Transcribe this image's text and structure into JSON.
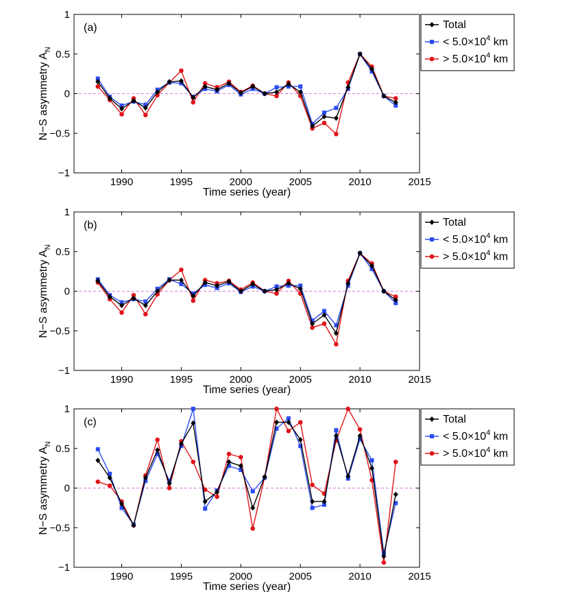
{
  "colors": {
    "total": "#000000",
    "small": "#2b4cf0",
    "large": "#e0141a",
    "zero_line": "#d57ad6",
    "axis": "#000000",
    "background": "#ffffff"
  },
  "chart_data": [
    {
      "type": "line",
      "panel_label": "(a)",
      "xlabel": "Time series (year)",
      "ylabel": "N−S asymmetry A",
      "ylabel_sub": "N",
      "xlim": [
        1986,
        2015
      ],
      "ylim": [
        -1,
        1
      ],
      "x_ticks": [
        1990,
        1995,
        2000,
        2005,
        2010,
        2015
      ],
      "y_ticks": [
        -1,
        -0.5,
        0,
        0.5,
        1
      ],
      "y_tick_labels": [
        "−1",
        "−0.5",
        "0",
        "0.5",
        "1"
      ],
      "zero_line": true,
      "grid": false,
      "legend_position": "outside-right-top",
      "x": [
        1988,
        1989,
        1990,
        1991,
        1992,
        1993,
        1994,
        1995,
        1996,
        1997,
        1998,
        1999,
        2000,
        2001,
        2002,
        2003,
        2004,
        2005,
        2006,
        2007,
        2008,
        2009,
        2010,
        2011,
        2012,
        2013
      ],
      "series": [
        {
          "key": "total",
          "name_prefix": "Total",
          "name_sup": "",
          "name_suffix": "",
          "marker": "diamond",
          "values": [
            0.15,
            -0.06,
            -0.19,
            -0.09,
            -0.18,
            0.02,
            0.15,
            0.16,
            -0.05,
            0.09,
            0.05,
            0.13,
            0.01,
            0.09,
            0.0,
            0.02,
            0.12,
            0.02,
            -0.41,
            -0.29,
            -0.31,
            0.08,
            0.5,
            0.31,
            -0.03,
            -0.11
          ]
        },
        {
          "key": "small",
          "name_prefix": "< 5.0×10",
          "name_sup": "4",
          "name_suffix": " km",
          "marker": "square",
          "values": [
            0.19,
            -0.04,
            -0.15,
            -0.1,
            -0.14,
            0.05,
            0.14,
            0.13,
            -0.04,
            0.06,
            0.03,
            0.11,
            -0.01,
            0.06,
            0.0,
            0.08,
            0.09,
            0.09,
            -0.38,
            -0.24,
            -0.18,
            0.06,
            0.5,
            0.28,
            -0.03,
            -0.15
          ]
        },
        {
          "key": "large",
          "name_prefix": "> 5.0×10",
          "name_sup": "4",
          "name_suffix": " km",
          "marker": "circle",
          "values": [
            0.09,
            -0.08,
            -0.26,
            -0.06,
            -0.27,
            -0.02,
            0.14,
            0.29,
            -0.11,
            0.13,
            0.08,
            0.15,
            0.02,
            0.1,
            0.0,
            -0.03,
            0.14,
            -0.03,
            -0.44,
            -0.37,
            -0.51,
            0.14,
            0.5,
            0.34,
            -0.03,
            -0.06
          ]
        }
      ]
    },
    {
      "type": "line",
      "panel_label": "(b)",
      "xlabel": "Time series (year)",
      "ylabel": "N−S asymmetry A",
      "ylabel_sub": "N",
      "xlim": [
        1986,
        2015
      ],
      "ylim": [
        -1,
        1
      ],
      "x_ticks": [
        1990,
        1995,
        2000,
        2005,
        2010,
        2015
      ],
      "y_ticks": [
        -1,
        -0.5,
        0,
        0.5,
        1
      ],
      "y_tick_labels": [
        "−1",
        "−0.5",
        "0",
        "0.5",
        "1"
      ],
      "zero_line": true,
      "grid": false,
      "legend_position": "outside-right-top",
      "x": [
        1988,
        1989,
        1990,
        1991,
        1992,
        1993,
        1994,
        1995,
        1996,
        1997,
        1998,
        1999,
        2000,
        2001,
        2002,
        2003,
        2004,
        2005,
        2006,
        2007,
        2008,
        2009,
        2010,
        2011,
        2012,
        2013
      ],
      "series": [
        {
          "key": "total",
          "name_prefix": "Total",
          "name_sup": "",
          "name_suffix": "",
          "marker": "diamond",
          "values": [
            0.13,
            -0.07,
            -0.18,
            -0.09,
            -0.18,
            0.0,
            0.14,
            0.14,
            -0.06,
            0.11,
            0.07,
            0.12,
            0.0,
            0.09,
            0.0,
            0.02,
            0.1,
            0.03,
            -0.41,
            -0.3,
            -0.53,
            0.1,
            0.48,
            0.32,
            0.0,
            -0.11
          ]
        },
        {
          "key": "small",
          "name_prefix": "< 5.0×10",
          "name_sup": "4",
          "name_suffix": " km",
          "marker": "square",
          "values": [
            0.15,
            -0.05,
            -0.14,
            -0.1,
            -0.13,
            0.03,
            0.15,
            0.09,
            -0.03,
            0.08,
            0.04,
            0.1,
            -0.01,
            0.06,
            0.0,
            0.06,
            0.07,
            0.07,
            -0.37,
            -0.25,
            -0.43,
            0.07,
            0.48,
            0.28,
            0.0,
            -0.15
          ]
        },
        {
          "key": "large",
          "name_prefix": "> 5.0×10",
          "name_sup": "4",
          "name_suffix": " km",
          "marker": "circle",
          "values": [
            0.11,
            -0.1,
            -0.27,
            -0.05,
            -0.29,
            -0.04,
            0.14,
            0.27,
            -0.12,
            0.14,
            0.1,
            0.13,
            0.02,
            0.11,
            0.0,
            -0.03,
            0.13,
            -0.03,
            -0.46,
            -0.41,
            -0.67,
            0.13,
            0.48,
            0.35,
            0.0,
            -0.07
          ]
        }
      ]
    },
    {
      "type": "line",
      "panel_label": "(c)",
      "xlabel": "Time series (year)",
      "ylabel": "N−S asymmetry A",
      "ylabel_sub": "N",
      "xlim": [
        1986,
        2015
      ],
      "ylim": [
        -1,
        1
      ],
      "x_ticks": [
        1990,
        1995,
        2000,
        2005,
        2010,
        2015
      ],
      "y_ticks": [
        -1,
        -0.5,
        0,
        0.5,
        1
      ],
      "y_tick_labels": [
        "−1",
        "−0.5",
        "0",
        "0.5",
        "1"
      ],
      "zero_line": true,
      "grid": false,
      "legend_position": "outside-right-top",
      "x": [
        1988,
        1989,
        1990,
        1991,
        1992,
        1993,
        1994,
        1995,
        1996,
        1997,
        1998,
        1999,
        2000,
        2001,
        2002,
        2003,
        2004,
        2005,
        2006,
        2007,
        2008,
        2009,
        2010,
        2011,
        2012,
        2013
      ],
      "series": [
        {
          "key": "total",
          "name_prefix": "Total",
          "name_sup": "",
          "name_suffix": "",
          "marker": "diamond",
          "values": [
            0.35,
            0.13,
            -0.2,
            -0.47,
            0.13,
            0.48,
            0.06,
            0.56,
            0.82,
            -0.17,
            -0.05,
            0.33,
            0.28,
            -0.25,
            0.14,
            0.83,
            0.83,
            0.61,
            -0.17,
            -0.17,
            0.66,
            0.15,
            0.66,
            0.25,
            -0.86,
            -0.08
          ]
        },
        {
          "key": "small",
          "name_prefix": "< 5.0×10",
          "name_sup": "4",
          "name_suffix": " km",
          "marker": "square",
          "values": [
            0.49,
            0.18,
            -0.25,
            -0.46,
            0.09,
            0.43,
            0.09,
            0.53,
            1.0,
            -0.26,
            -0.03,
            0.28,
            0.23,
            -0.04,
            0.13,
            0.75,
            0.88,
            0.53,
            -0.25,
            -0.21,
            0.73,
            0.12,
            0.62,
            0.35,
            -0.82,
            -0.19
          ]
        },
        {
          "key": "large",
          "name_prefix": "> 5.0×10",
          "name_sup": "4",
          "name_suffix": " km",
          "marker": "circle",
          "values": [
            0.08,
            0.03,
            -0.17,
            -0.47,
            0.16,
            0.61,
            0.0,
            0.59,
            0.33,
            -0.02,
            -0.11,
            0.43,
            0.39,
            -0.51,
            0.14,
            1.0,
            0.72,
            0.83,
            0.04,
            -0.07,
            0.6,
            1.0,
            0.74,
            0.1,
            -0.94,
            0.33
          ]
        }
      ]
    }
  ]
}
